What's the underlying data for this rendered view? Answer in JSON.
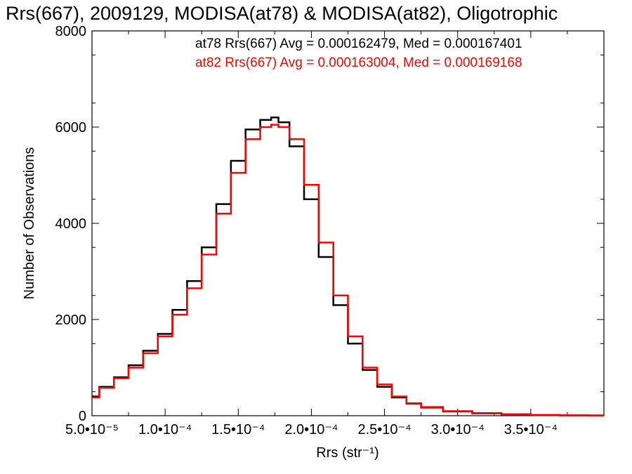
{
  "chart_data": {
    "type": "histogram-line",
    "title": "Rrs(667), 2009129, MODISA(at78) & MODISA(at82), Oligotrophic",
    "xlabel": "Rrs (str⁻¹)",
    "ylabel": "Number of Observations",
    "xlim": [
      5e-05,
      0.0004
    ],
    "ylim": [
      0,
      8000
    ],
    "x_ticks": [
      5e-05,
      0.0001,
      0.00015,
      0.0002,
      0.00025,
      0.0003,
      0.00035
    ],
    "x_tick_labels": [
      "5.0•10⁻⁵",
      "1.0•10⁻⁴",
      "1.5•10⁻⁴",
      "2.0•10⁻⁴",
      "2.5•10⁻⁴",
      "3.0•10⁻⁴",
      "3.5•10⁻⁴"
    ],
    "y_ticks": [
      0,
      2000,
      4000,
      6000,
      8000
    ],
    "y_tick_labels": [
      "0",
      "2000",
      "4000",
      "6000",
      "8000"
    ],
    "grid": false,
    "annotations": [
      {
        "text": "at78 Rrs(667) Avg = 0.000162479, Med = 0.000167401",
        "color": "#000000"
      },
      {
        "text": "at82 Rrs(667) Avg = 0.000163004, Med = 0.000169168",
        "color": "#ff0000"
      }
    ],
    "series": [
      {
        "color": "#000000",
        "x": [
          5e-05,
          6e-05,
          7e-05,
          8e-05,
          9e-05,
          0.0001,
          0.00011,
          0.00012,
          0.00013,
          0.00014,
          0.00015,
          0.00016,
          0.00017,
          0.000175,
          0.00018,
          0.00019,
          0.0002,
          0.00021,
          0.00022,
          0.00023,
          0.00024,
          0.00025,
          0.00026,
          0.00027,
          0.00028,
          0.0003,
          0.00032,
          0.00034,
          0.00036,
          0.00038,
          0.0004
        ],
        "y": [
          400,
          600,
          800,
          1050,
          1350,
          1700,
          2200,
          2800,
          3500,
          4400,
          5300,
          5950,
          6150,
          6200,
          6100,
          5600,
          4500,
          3300,
          2300,
          1500,
          950,
          600,
          380,
          250,
          170,
          90,
          50,
          30,
          15,
          8,
          5
        ]
      },
      {
        "color": "#ff0000",
        "x": [
          5e-05,
          6e-05,
          7e-05,
          8e-05,
          9e-05,
          0.0001,
          0.00011,
          0.00012,
          0.00013,
          0.00014,
          0.00015,
          0.00016,
          0.00017,
          0.000175,
          0.00018,
          0.00019,
          0.0002,
          0.00021,
          0.00022,
          0.00023,
          0.00024,
          0.00025,
          0.00026,
          0.00027,
          0.00028,
          0.0003,
          0.00032,
          0.00034,
          0.00036,
          0.00038,
          0.0004
        ],
        "y": [
          380,
          580,
          780,
          1000,
          1300,
          1650,
          2100,
          2650,
          3350,
          4200,
          5050,
          5750,
          6000,
          6050,
          6000,
          5750,
          4800,
          3600,
          2500,
          1650,
          1000,
          650,
          400,
          260,
          180,
          95,
          55,
          30,
          15,
          8,
          5
        ]
      }
    ]
  }
}
